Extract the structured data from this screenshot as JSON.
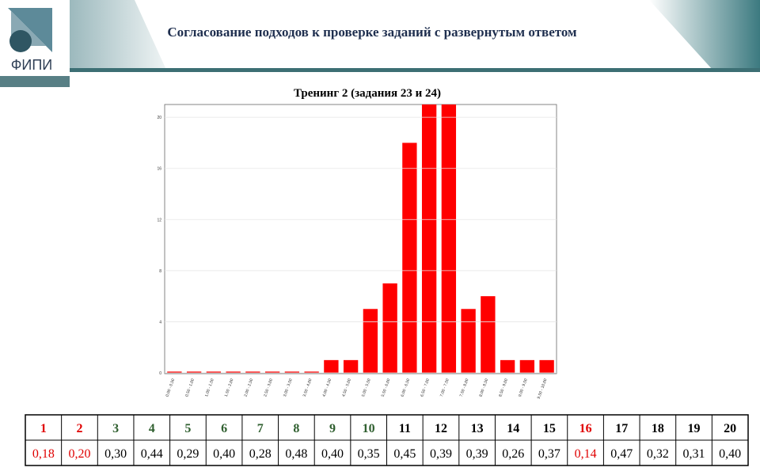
{
  "header": {
    "logo": "ФИПИ",
    "title": "Согласование подходов к проверке заданий с развернутым ответом"
  },
  "chart_data": {
    "type": "bar",
    "title": "Тренинг 2 (задания 23 и 24)",
    "categories": [
      "0,00 - 0,50",
      "0,50 - 1,00",
      "1,00 - 1,50",
      "1,50 - 2,00",
      "2,00 - 2,50",
      "2,50 - 3,00",
      "3,00 - 3,50",
      "3,50 - 4,00",
      "4,00 - 4,50",
      "4,50 - 5,00",
      "5,00 - 5,50",
      "5,50 - 6,00",
      "6,00 - 6,50",
      "6,50 - 7,00",
      "7,00 - 7,50",
      "7,50 - 8,00",
      "8,00 - 8,50",
      "8,50 - 9,00",
      "9,00 - 9,50",
      "9,50 - 10,00"
    ],
    "values": [
      0.1,
      0.1,
      0.1,
      0.1,
      0.1,
      0.1,
      0.1,
      0.1,
      1,
      1,
      5,
      7,
      18,
      22,
      22,
      5,
      6,
      1,
      1,
      1
    ],
    "color": "#ff0000",
    "ylim": [
      0,
      21
    ],
    "yticks": [
      0,
      4,
      8,
      12,
      16,
      20
    ],
    "grid": true
  },
  "table": {
    "header": [
      "1",
      "2",
      "3",
      "4",
      "5",
      "6",
      "7",
      "8",
      "9",
      "10",
      "11",
      "12",
      "13",
      "14",
      "15",
      "16",
      "17",
      "18",
      "19",
      "20"
    ],
    "values": [
      "0,18",
      "0,20",
      "0,30",
      "0,44",
      "0,29",
      "0,40",
      "0,28",
      "0,48",
      "0,40",
      "0,35",
      "0,45",
      "0,39",
      "0,39",
      "0,26",
      "0,37",
      "0,14",
      "0,47",
      "0,32",
      "0,31",
      "0,40"
    ],
    "header_colors": [
      "#e00000",
      "#e00000",
      "#2f5f2f",
      "#2f5f2f",
      "#2f5f2f",
      "#2f5f2f",
      "#2f5f2f",
      "#2f5f2f",
      "#2f5f2f",
      "#2f5f2f",
      "#000000",
      "#000000",
      "#000000",
      "#000000",
      "#000000",
      "#e00000",
      "#000000",
      "#000000",
      "#000000",
      "#000000"
    ],
    "value_colors": [
      "#e00000",
      "#e00000",
      "#000000",
      "#000000",
      "#000000",
      "#000000",
      "#000000",
      "#000000",
      "#000000",
      "#000000",
      "#000000",
      "#000000",
      "#000000",
      "#000000",
      "#000000",
      "#e00000",
      "#000000",
      "#000000",
      "#000000",
      "#000000"
    ]
  }
}
